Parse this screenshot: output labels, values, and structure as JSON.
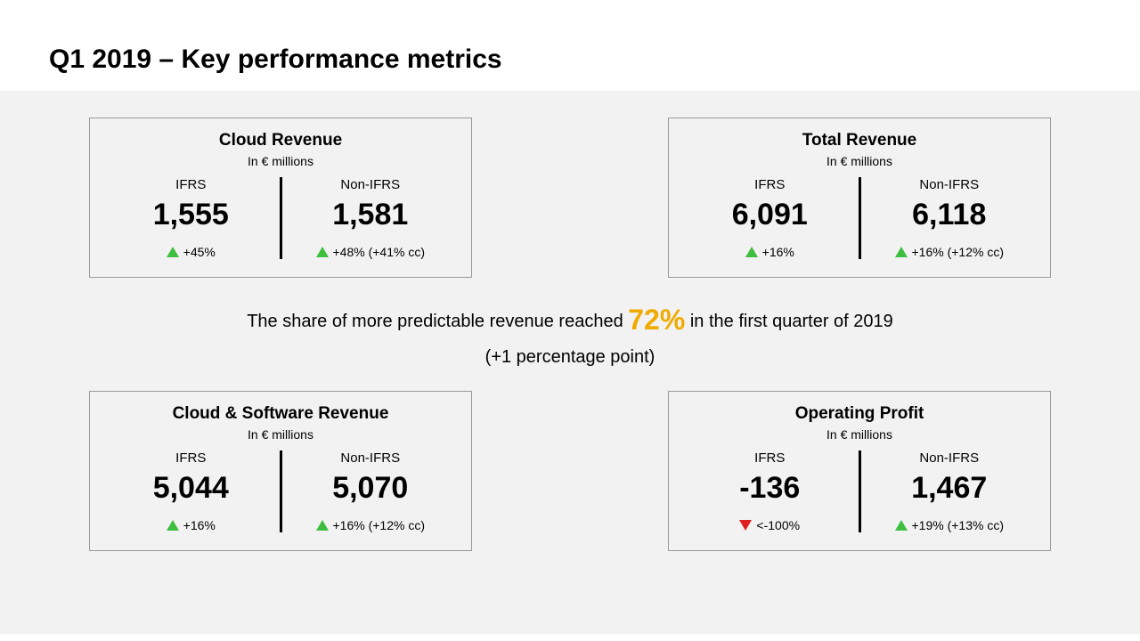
{
  "page": {
    "title": "Q1 2019 – Key performance metrics",
    "background_color": "#f2f2f2",
    "accent_color": "#f0ab00",
    "up_color": "#3fbf3f",
    "down_color": "#e02020",
    "border_color": "#9a9a9a"
  },
  "mid_text": {
    "pre": "The share of more predictable revenue reached ",
    "big": "72%",
    "post": " in the first quarter of 2019",
    "line2": "(+1 percentage point)"
  },
  "cards": {
    "cloud_revenue": {
      "title": "Cloud Revenue",
      "sub": "In € millions",
      "ifrs": {
        "label": "IFRS",
        "value": "1,555",
        "arrow": "up",
        "delta": "+45%"
      },
      "non_ifrs": {
        "label": "Non-IFRS",
        "value": "1,581",
        "arrow": "up",
        "delta": "+48% (+41% cc)"
      }
    },
    "total_revenue": {
      "title": "Total Revenue",
      "sub": "In € millions",
      "ifrs": {
        "label": "IFRS",
        "value": "6,091",
        "arrow": "up",
        "delta": "+16%"
      },
      "non_ifrs": {
        "label": "Non-IFRS",
        "value": "6,118",
        "arrow": "up",
        "delta": "+16% (+12% cc)"
      }
    },
    "cloud_software": {
      "title": "Cloud & Software Revenue",
      "sub": "In € millions",
      "ifrs": {
        "label": "IFRS",
        "value": "5,044",
        "arrow": "up",
        "delta": "+16%"
      },
      "non_ifrs": {
        "label": "Non-IFRS",
        "value": "5,070",
        "arrow": "up",
        "delta": "+16% (+12% cc)"
      }
    },
    "operating_profit": {
      "title": "Operating Profit",
      "sub": "In € millions",
      "ifrs": {
        "label": "IFRS",
        "value": "-136",
        "arrow": "down",
        "delta": "<-100%"
      },
      "non_ifrs": {
        "label": "Non-IFRS",
        "value": "1,467",
        "arrow": "up",
        "delta": "+19% (+13% cc)"
      }
    }
  }
}
